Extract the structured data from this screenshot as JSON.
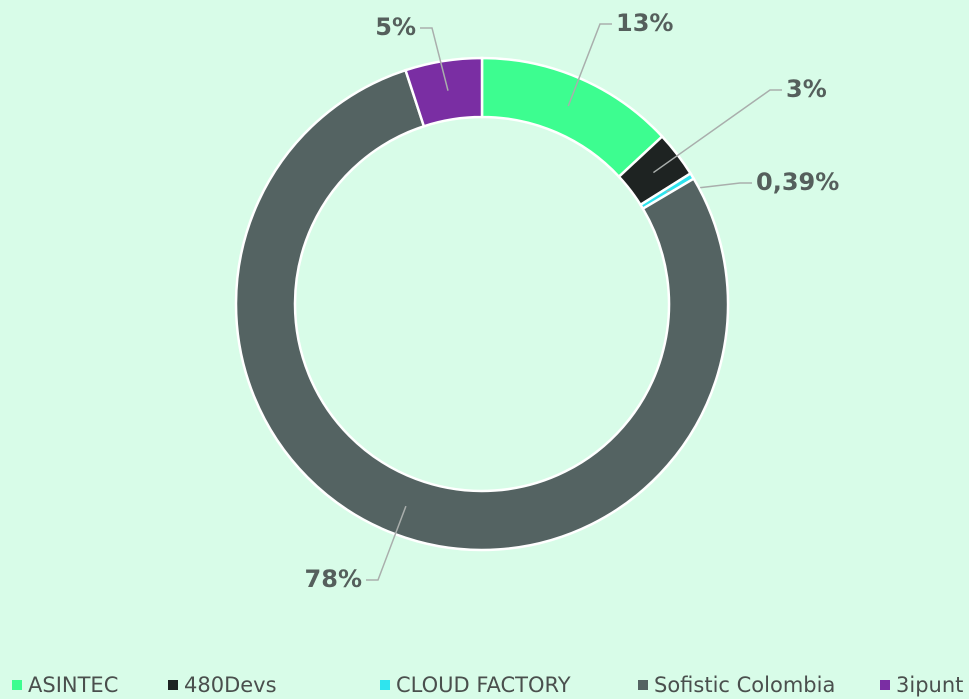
{
  "chart_data": {
    "type": "donut",
    "categories": [
      "ASINTEC",
      "480Devs",
      "CLOUD FACTORY",
      "Sofistic Colombia",
      "3ipunt"
    ],
    "values": [
      13,
      3,
      0.39,
      78,
      5
    ],
    "value_labels": [
      "13%",
      "3%",
      "0,39%",
      "78%",
      "5%"
    ],
    "colors": [
      "#3dfd90",
      "#1e2322",
      "#2fe4ee",
      "#546362",
      "#7a2ea3"
    ],
    "legend": "bottom"
  }
}
